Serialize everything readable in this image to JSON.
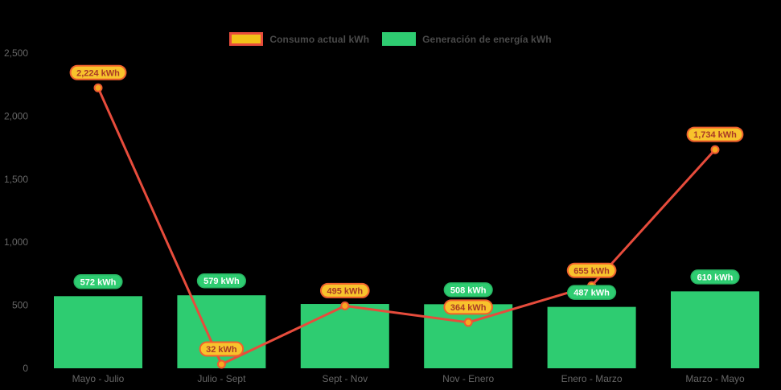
{
  "legend": {
    "items": [
      {
        "label": "Consumo actual kWh",
        "swatch_fill": "#f2c118",
        "swatch_border": "#e74c3c"
      },
      {
        "label": "Generación de energía kWh",
        "swatch_fill": "#2ecc71",
        "swatch_border": "#2ecc71"
      }
    ]
  },
  "chart_data": {
    "type": "combo-bar-line",
    "categories": [
      "Mayo - Julio",
      "Julio - Sept",
      "Sept - Nov",
      "Nov - Enero",
      "Enero - Marzo",
      "Marzo - Mayo"
    ],
    "series": [
      {
        "name": "Generación de energía kWh",
        "type": "bar",
        "color": "#2ecc71",
        "values": [
          572,
          579,
          510,
          508,
          487,
          610
        ],
        "labels": [
          "572 kWh",
          "579 kWh",
          null,
          "508 kWh",
          "487 kWh",
          "610 kWh"
        ]
      },
      {
        "name": "Consumo actual kWh",
        "type": "line",
        "color": "#e74c3c",
        "values": [
          2224,
          32,
          495,
          364,
          655,
          1734
        ],
        "labels": [
          "2,224 kWh",
          "32 kWh",
          "495 kWh",
          "364 kWh",
          "655 kWh",
          "1,734 kWh"
        ]
      }
    ],
    "ylim": [
      0,
      2500
    ],
    "y_tick_values": [
      0,
      500,
      1000,
      1500,
      2000,
      2500
    ],
    "y_tick_labels": [
      "0",
      "500",
      "1,000",
      "1,500",
      "2,000",
      "2,500"
    ],
    "grid": false,
    "legend_position": "top",
    "colors": {
      "background": "#000000",
      "bar": "#2ecc71",
      "line": "#e74c3c",
      "marker_fill": "#f6a821",
      "marker_stroke": "#ee5a31",
      "line_label_fill": "#f8c32c",
      "line_label_border": "#ef612d",
      "line_label_text": "#a93a26",
      "bar_label_fill": "#2ecc71",
      "bar_label_border": "#27b562",
      "bar_label_text": "#ffffff",
      "axis_text": "#666666"
    }
  }
}
